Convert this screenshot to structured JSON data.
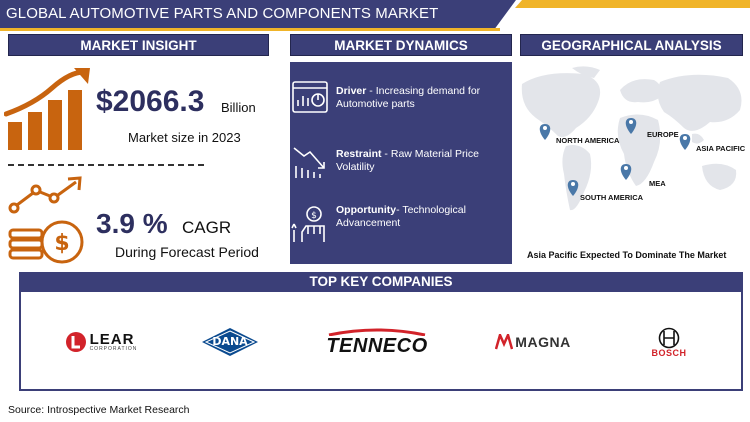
{
  "title": "GLOBAL AUTOMOTIVE PARTS AND COMPONENTS MARKET RESEARCH REPORT",
  "colors": {
    "navy": "#3b3f78",
    "orange": "#c8640f",
    "gold": "#f0b429",
    "pin": "#4a78a8"
  },
  "insight": {
    "heading": "MARKET INSIGHT",
    "market_size": "$2066.3",
    "market_size_unit": "Billion",
    "market_size_caption": "Market size in 2023",
    "cagr": "3.9 %",
    "cagr_unit": "CAGR",
    "cagr_caption": "During Forecast Period",
    "icons": [
      "growth-bar-chart-icon",
      "dollar-coins-growth-icon"
    ]
  },
  "dynamics": {
    "heading": "MARKET DYNAMICS",
    "items": [
      {
        "label": "Driver",
        "sep": " - ",
        "text": "Increasing demand for Automotive parts",
        "icon": "dashboard-chart-icon"
      },
      {
        "label": "Restraint",
        "sep": " -  ",
        "text": "Raw Material Price Volatility",
        "icon": "downward-trend-icon"
      },
      {
        "label": "Opportunity",
        "sep": "-  ",
        "text": "Technological Advancement",
        "icon": "hand-coin-growth-icon"
      }
    ]
  },
  "geo": {
    "heading": "GEOGRAPHICAL ANALYSIS",
    "regions": [
      "NORTH AMERICA",
      "EUROPE",
      "ASIA PACIFIC",
      "MEA",
      "SOUTH AMERICA"
    ],
    "caption": "Asia Pacific Expected To Dominate The Market"
  },
  "companies": {
    "heading": "TOP KEY COMPANIES",
    "logos": [
      {
        "name": "LEAR",
        "sub": "CORPORATION"
      },
      {
        "name": "DANA"
      },
      {
        "name": "TENNECO"
      },
      {
        "name": "MAGNA"
      },
      {
        "name": "BOSCH"
      }
    ]
  },
  "source": "Source: Introspective Market Research"
}
